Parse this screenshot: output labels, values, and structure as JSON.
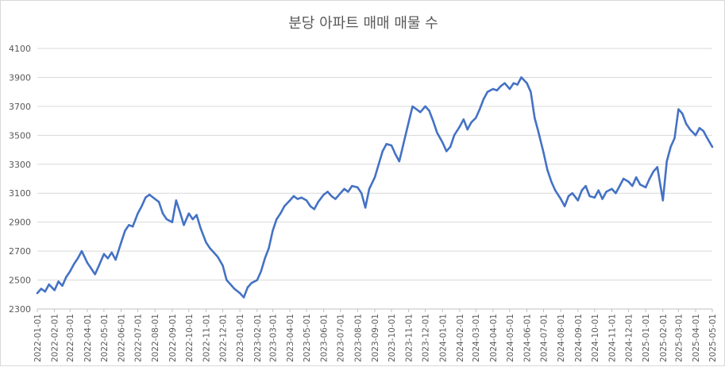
{
  "chart_data": {
    "type": "line",
    "title": "분당 아파트 매매 매물 수",
    "xlabel": "",
    "ylabel": "",
    "ylim": [
      2300,
      4100
    ],
    "yticks": [
      2300,
      2500,
      2700,
      2900,
      3100,
      3300,
      3500,
      3700,
      3900,
      4100
    ],
    "xticks": [
      "2022-01-01",
      "2022-02-01",
      "2022-03-01",
      "2022-04-01",
      "2022-05-01",
      "2022-06-01",
      "2022-07-01",
      "2022-08-01",
      "2022-09-01",
      "2022-10-01",
      "2022-11-01",
      "2022-12-01",
      "2023-01-01",
      "2023-02-01",
      "2023-03-01",
      "2023-04-01",
      "2023-05-01",
      "2023-06-01",
      "2023-07-01",
      "2023-08-01",
      "2023-09-01",
      "2023-10-01",
      "2023-11-01",
      "2023-12-01",
      "2024-01-01",
      "2024-02-01",
      "2024-03-01",
      "2024-04-01",
      "2024-05-01",
      "2024-06-01",
      "2024-07-01",
      "2024-08-01",
      "2024-09-01",
      "2024-10-01",
      "2024-11-01",
      "2024-12-01",
      "2025-01-01",
      "2025-02-01",
      "2025-03-01",
      "2025-04-01",
      "2025-05-01"
    ],
    "grid": true,
    "series": [
      {
        "color": "#4472c4",
        "points": [
          [
            "2022-01-01",
            2410
          ],
          [
            "2022-01-08",
            2440
          ],
          [
            "2022-01-15",
            2420
          ],
          [
            "2022-01-22",
            2470
          ],
          [
            "2022-02-01",
            2430
          ],
          [
            "2022-02-08",
            2490
          ],
          [
            "2022-02-15",
            2460
          ],
          [
            "2022-02-22",
            2520
          ],
          [
            "2022-03-01",
            2560
          ],
          [
            "2022-03-08",
            2610
          ],
          [
            "2022-03-15",
            2650
          ],
          [
            "2022-03-22",
            2700
          ],
          [
            "2022-04-01",
            2620
          ],
          [
            "2022-04-08",
            2580
          ],
          [
            "2022-04-15",
            2540
          ],
          [
            "2022-04-22",
            2600
          ],
          [
            "2022-05-01",
            2680
          ],
          [
            "2022-05-08",
            2650
          ],
          [
            "2022-05-15",
            2690
          ],
          [
            "2022-05-22",
            2640
          ],
          [
            "2022-06-01",
            2760
          ],
          [
            "2022-06-08",
            2840
          ],
          [
            "2022-06-15",
            2880
          ],
          [
            "2022-06-22",
            2870
          ],
          [
            "2022-07-01",
            2960
          ],
          [
            "2022-07-08",
            3010
          ],
          [
            "2022-07-15",
            3070
          ],
          [
            "2022-07-22",
            3090
          ],
          [
            "2022-08-01",
            3060
          ],
          [
            "2022-08-08",
            3040
          ],
          [
            "2022-08-15",
            2960
          ],
          [
            "2022-08-22",
            2920
          ],
          [
            "2022-09-01",
            2900
          ],
          [
            "2022-09-08",
            3050
          ],
          [
            "2022-09-15",
            2970
          ],
          [
            "2022-09-22",
            2880
          ],
          [
            "2022-10-01",
            2960
          ],
          [
            "2022-10-08",
            2920
          ],
          [
            "2022-10-15",
            2950
          ],
          [
            "2022-10-22",
            2860
          ],
          [
            "2022-11-01",
            2760
          ],
          [
            "2022-11-08",
            2720
          ],
          [
            "2022-11-15",
            2690
          ],
          [
            "2022-11-22",
            2660
          ],
          [
            "2022-12-01",
            2600
          ],
          [
            "2022-12-08",
            2500
          ],
          [
            "2022-12-15",
            2470
          ],
          [
            "2022-12-22",
            2440
          ],
          [
            "2023-01-01",
            2410
          ],
          [
            "2023-01-08",
            2380
          ],
          [
            "2023-01-15",
            2450
          ],
          [
            "2023-01-22",
            2480
          ],
          [
            "2023-02-01",
            2500
          ],
          [
            "2023-02-08",
            2560
          ],
          [
            "2023-02-15",
            2650
          ],
          [
            "2023-02-22",
            2720
          ],
          [
            "2023-03-01",
            2840
          ],
          [
            "2023-03-08",
            2920
          ],
          [
            "2023-03-15",
            2960
          ],
          [
            "2023-03-22",
            3010
          ],
          [
            "2023-04-01",
            3050
          ],
          [
            "2023-04-08",
            3080
          ],
          [
            "2023-04-15",
            3060
          ],
          [
            "2023-04-22",
            3070
          ],
          [
            "2023-05-01",
            3050
          ],
          [
            "2023-05-08",
            3010
          ],
          [
            "2023-05-15",
            2990
          ],
          [
            "2023-05-22",
            3040
          ],
          [
            "2023-06-01",
            3090
          ],
          [
            "2023-06-08",
            3110
          ],
          [
            "2023-06-15",
            3080
          ],
          [
            "2023-06-22",
            3060
          ],
          [
            "2023-07-01",
            3100
          ],
          [
            "2023-07-08",
            3130
          ],
          [
            "2023-07-15",
            3110
          ],
          [
            "2023-07-22",
            3150
          ],
          [
            "2023-08-01",
            3140
          ],
          [
            "2023-08-08",
            3100
          ],
          [
            "2023-08-15",
            3000
          ],
          [
            "2023-08-22",
            3130
          ],
          [
            "2023-09-01",
            3210
          ],
          [
            "2023-09-08",
            3300
          ],
          [
            "2023-09-15",
            3390
          ],
          [
            "2023-09-22",
            3440
          ],
          [
            "2023-10-01",
            3430
          ],
          [
            "2023-10-08",
            3370
          ],
          [
            "2023-10-15",
            3320
          ],
          [
            "2023-10-22",
            3430
          ],
          [
            "2023-11-01",
            3590
          ],
          [
            "2023-11-08",
            3700
          ],
          [
            "2023-11-15",
            3680
          ],
          [
            "2023-11-22",
            3660
          ],
          [
            "2023-12-01",
            3700
          ],
          [
            "2023-12-08",
            3670
          ],
          [
            "2023-12-15",
            3600
          ],
          [
            "2023-12-22",
            3520
          ],
          [
            "2024-01-01",
            3450
          ],
          [
            "2024-01-08",
            3390
          ],
          [
            "2024-01-15",
            3420
          ],
          [
            "2024-01-22",
            3500
          ],
          [
            "2024-02-01",
            3560
          ],
          [
            "2024-02-08",
            3610
          ],
          [
            "2024-02-15",
            3540
          ],
          [
            "2024-02-22",
            3590
          ],
          [
            "2024-03-01",
            3620
          ],
          [
            "2024-03-08",
            3680
          ],
          [
            "2024-03-15",
            3750
          ],
          [
            "2024-03-22",
            3800
          ],
          [
            "2024-04-01",
            3820
          ],
          [
            "2024-04-08",
            3810
          ],
          [
            "2024-04-15",
            3840
          ],
          [
            "2024-04-22",
            3860
          ],
          [
            "2024-05-01",
            3820
          ],
          [
            "2024-05-08",
            3860
          ],
          [
            "2024-05-15",
            3850
          ],
          [
            "2024-05-22",
            3900
          ],
          [
            "2024-06-01",
            3860
          ],
          [
            "2024-06-08",
            3800
          ],
          [
            "2024-06-15",
            3620
          ],
          [
            "2024-06-22",
            3520
          ],
          [
            "2024-07-01",
            3380
          ],
          [
            "2024-07-08",
            3260
          ],
          [
            "2024-07-15",
            3180
          ],
          [
            "2024-07-22",
            3120
          ],
          [
            "2024-08-01",
            3060
          ],
          [
            "2024-08-08",
            3010
          ],
          [
            "2024-08-15",
            3080
          ],
          [
            "2024-08-22",
            3100
          ],
          [
            "2024-09-01",
            3050
          ],
          [
            "2024-09-08",
            3120
          ],
          [
            "2024-09-15",
            3150
          ],
          [
            "2024-09-22",
            3080
          ],
          [
            "2024-10-01",
            3070
          ],
          [
            "2024-10-08",
            3120
          ],
          [
            "2024-10-15",
            3060
          ],
          [
            "2024-10-22",
            3110
          ],
          [
            "2024-11-01",
            3130
          ],
          [
            "2024-11-08",
            3100
          ],
          [
            "2024-11-15",
            3150
          ],
          [
            "2024-11-22",
            3200
          ],
          [
            "2024-12-01",
            3180
          ],
          [
            "2024-12-08",
            3150
          ],
          [
            "2024-12-15",
            3210
          ],
          [
            "2024-12-22",
            3160
          ],
          [
            "2025-01-01",
            3140
          ],
          [
            "2025-01-08",
            3200
          ],
          [
            "2025-01-15",
            3250
          ],
          [
            "2025-01-22",
            3280
          ],
          [
            "2025-02-01",
            3050
          ],
          [
            "2025-02-08",
            3320
          ],
          [
            "2025-02-15",
            3420
          ],
          [
            "2025-02-22",
            3480
          ],
          [
            "2025-03-01",
            3680
          ],
          [
            "2025-03-08",
            3650
          ],
          [
            "2025-03-15",
            3580
          ],
          [
            "2025-03-22",
            3540
          ],
          [
            "2025-04-01",
            3500
          ],
          [
            "2025-04-08",
            3550
          ],
          [
            "2025-04-15",
            3530
          ],
          [
            "2025-04-22",
            3480
          ],
          [
            "2025-05-01",
            3420
          ]
        ]
      }
    ]
  }
}
